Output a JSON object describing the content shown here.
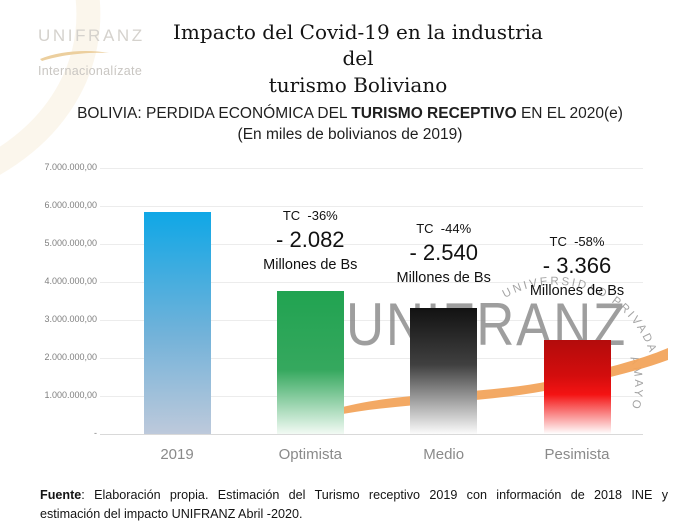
{
  "logo": {
    "brand": "UNIFRANZ",
    "tagline": "Internacionalízate",
    "brand_color": "#d5d2cd",
    "swoosh_color": "#eccf9e"
  },
  "header": {
    "title_line1": "Impacto del Covid-19 en la industria del",
    "title_line2": "turismo Boliviano"
  },
  "chart": {
    "title_pre": "BOLIVIA: PERDIDA ECONÓMICA DEL ",
    "title_bold": "TURISMO RECEPTIVO",
    "title_post": " EN EL 2020(e)",
    "subtitle": "(En miles de bolivianos de 2019)"
  },
  "watermark": {
    "brand": "UNIFRANZ",
    "ring_text": "UNIVERSIDAD   PRIVADA",
    "ring_text2": "AMAYO",
    "text_color": "#8e8e8e",
    "ring_color": "#9a9a9a",
    "swoosh_color": "#f2a45c"
  },
  "chart_data": {
    "type": "bar",
    "title": "BOLIVIA: PERDIDA ECONÓMICA DEL TURISMO RECEPTIVO EN EL 2020(e)",
    "subtitle": "(En miles de bolivianos de 2019)",
    "categories": [
      "2019",
      "Optimista",
      "Medio",
      "Pesimista"
    ],
    "values": [
      5850000,
      3770000,
      3310000,
      2480000
    ],
    "ylim": [
      0,
      7000000
    ],
    "ytick_step": 1000000,
    "ytick_labels": [
      "7.000.000,00",
      "6.000.000,00",
      "5.000.000,00",
      "4.000.000,00",
      "3.000.000,00",
      "2.000.000,00",
      "1.000.000,00",
      "-"
    ],
    "grid": true,
    "legend": false,
    "annotations": [
      {
        "tc": "",
        "loss": "",
        "unit": ""
      },
      {
        "tc": "TC  -36%",
        "loss": "- 2.082",
        "unit": "Millones de Bs"
      },
      {
        "tc": "TC  -44%",
        "loss": "- 2.540",
        "unit": "Millones de Bs"
      },
      {
        "tc": "TC  -58%",
        "loss": "- 3.366",
        "unit": "Millones de Bs"
      }
    ],
    "bar_gradients": [
      [
        "#0fa7e6 0%",
        "#72b2d9 55%",
        "#bdc9db 100%"
      ],
      [
        "#21a351 0%",
        "#35a85e 55%",
        "#f2faf4 100%"
      ],
      [
        "#121212 0%",
        "#404040 45%",
        "#fbfbfb 100%"
      ],
      [
        "#b30c0c 0%",
        "#d30d0d 38%",
        "#f41313 58%",
        "#ffffff 100%"
      ]
    ],
    "category_color": "#8a8a8a",
    "tick_color": "#7f7f7f",
    "grid_color": "#ececec",
    "axis_color": "#d9d9d9"
  },
  "footer": {
    "source_label": "Fuente",
    "line1_rest": ": Elaboración propia. Estimación del Turismo receptivo 2019 con información de 2018 INE y",
    "line2": "estimación del impacto UNIFRANZ Abril -2020."
  }
}
